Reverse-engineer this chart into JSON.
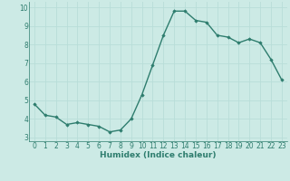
{
  "x": [
    0,
    1,
    2,
    3,
    4,
    5,
    6,
    7,
    8,
    9,
    10,
    11,
    12,
    13,
    14,
    15,
    16,
    17,
    18,
    19,
    20,
    21,
    22,
    23
  ],
  "y": [
    4.8,
    4.2,
    4.1,
    3.7,
    3.8,
    3.7,
    3.6,
    3.3,
    3.4,
    4.0,
    5.3,
    6.9,
    8.5,
    9.8,
    9.8,
    9.3,
    9.2,
    8.5,
    8.4,
    8.1,
    8.3,
    8.1,
    7.2,
    6.1
  ],
  "line_color": "#2e7d6e",
  "marker": "D",
  "marker_size": 1.8,
  "xlabel": "Humidex (Indice chaleur)",
  "xlim": [
    -0.5,
    23.5
  ],
  "ylim": [
    2.8,
    10.3
  ],
  "yticks": [
    3,
    4,
    5,
    6,
    7,
    8,
    9,
    10
  ],
  "xticks": [
    0,
    1,
    2,
    3,
    4,
    5,
    6,
    7,
    8,
    9,
    10,
    11,
    12,
    13,
    14,
    15,
    16,
    17,
    18,
    19,
    20,
    21,
    22,
    23
  ],
  "grid_color": "#b8ddd8",
  "bg_color": "#cceae5",
  "xlabel_fontsize": 6.5,
  "tick_fontsize": 5.5,
  "line_width": 1.0
}
